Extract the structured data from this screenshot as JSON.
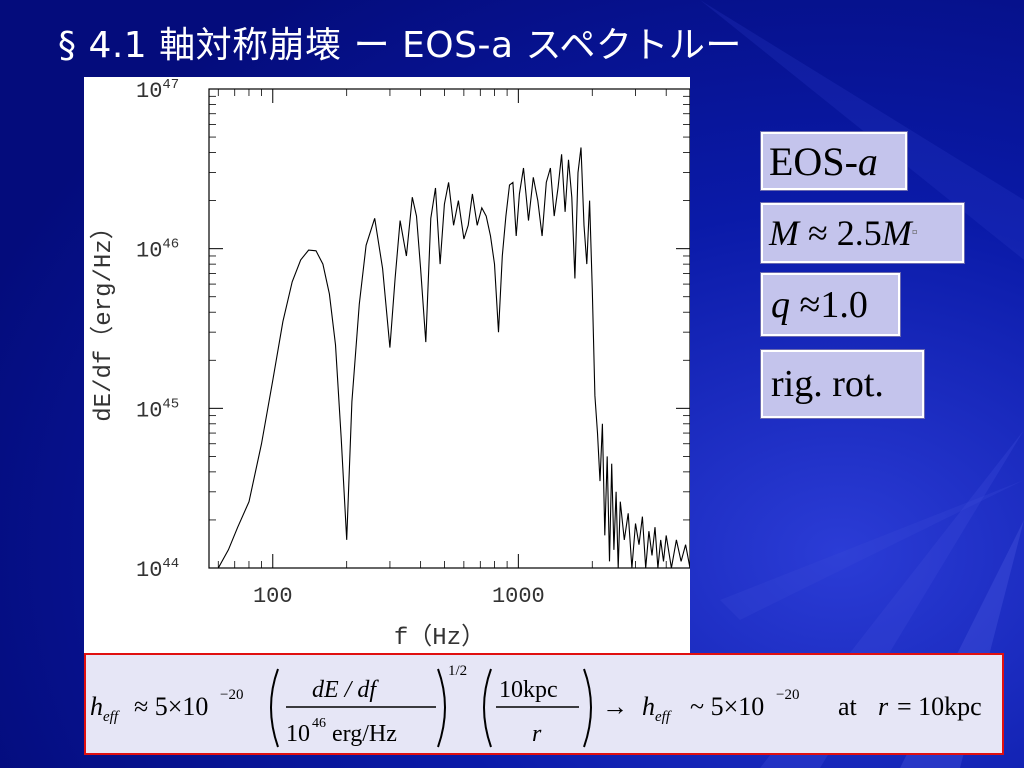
{
  "slide": {
    "title": "§ 4.1 軸対称崩壊 ー EOS-a スペクトルー",
    "colors": {
      "background": "#06109a",
      "label_box": "#c4c4ec",
      "formula_border": "#e01010"
    }
  },
  "labels": {
    "eos_prefix": "EOS-",
    "eos_italic": "a",
    "mass_m": "M",
    "mass_value": "≈ 2.5",
    "mass_msun": "M",
    "mass_sun_glyph": "▫",
    "q_symbol": "q",
    "q_value": "≈1.0",
    "rotation": "rig. rot."
  },
  "formula": {
    "h": "h",
    "eff": "eff",
    "approx": "≈ 5×10",
    "exp1": "−20",
    "num1": "dE / df",
    "den1_base": "10",
    "den1_exp": "46",
    "den1_unit": "erg/Hz",
    "power": "1/2",
    "num2": "10kpc",
    "den2": "r",
    "arrow": "→",
    "sim": "~ 5×10",
    "exp2": "−20",
    "at": "at",
    "r": "r",
    "equals": "= 10kpc"
  },
  "chart_data": {
    "type": "line",
    "xlabel": "f（Hz）",
    "ylabel": "dE/df（erg/Hz）",
    "xscale": "log",
    "yscale": "log",
    "xlim": [
      55,
      5000
    ],
    "ylim": [
      1e+44,
      1e+47
    ],
    "x_ticks": [
      {
        "value": 100,
        "label": "100"
      },
      {
        "value": 1000,
        "label": "1000"
      }
    ],
    "y_ticks": [
      {
        "value": 1e+44,
        "base": "10",
        "exp": "44"
      },
      {
        "value": 1e+45,
        "base": "10",
        "exp": "45"
      },
      {
        "value": 1e+46,
        "base": "10",
        "exp": "46"
      },
      {
        "value": 1e+47,
        "base": "10",
        "exp": "47"
      }
    ],
    "grid": false,
    "series": [
      {
        "x": [
          60,
          66,
          72,
          80,
          90,
          100,
          110,
          120,
          130,
          140,
          150,
          160,
          170,
          180,
          190,
          200,
          210,
          225,
          240,
          260,
          280,
          300,
          315,
          330,
          350,
          370,
          385,
          400,
          420,
          440,
          460,
          480,
          500,
          520,
          545,
          570,
          600,
          625,
          650,
          680,
          710,
          740,
          770,
          800,
          830,
          860,
          890,
          920,
          950,
          980,
          1010,
          1050,
          1100,
          1150,
          1200,
          1250,
          1300,
          1350,
          1400,
          1450,
          1500,
          1550,
          1600,
          1650,
          1700,
          1750,
          1800,
          1850,
          1900,
          1950,
          2000,
          2050,
          2100,
          2150,
          2200,
          2250,
          2300,
          2350,
          2400,
          2450,
          2500,
          2550,
          2600,
          2700,
          2800,
          2900,
          3000,
          3100,
          3200,
          3300,
          3400,
          3500,
          3600,
          3700,
          3800,
          3900,
          4000,
          4200,
          4400,
          4600,
          4800,
          5000
        ],
        "y": [
          1e+44,
          1.3e+44,
          1.8e+44,
          2.6e+44,
          6e+44,
          1.5e+45,
          3.5e+45,
          6.2e+45,
          8.5e+45,
          9.8e+45,
          9.7e+45,
          8e+45,
          5.2e+45,
          2.5e+45,
          6.5e+44,
          1.5e+44,
          1.1e+45,
          4.5e+45,
          1.05e+46,
          1.55e+46,
          7.5e+45,
          2.4e+45,
          6.5e+45,
          1.5e+46,
          9e+45,
          2.1e+46,
          1.6e+46,
          7.5e+45,
          2.6e+45,
          1.55e+46,
          2.4e+46,
          8e+45,
          1.9e+46,
          2.6e+46,
          1.4e+46,
          2e+46,
          1.15e+46,
          1.4e+46,
          2.2e+46,
          1.4e+46,
          1.8e+46,
          1.6e+46,
          1.2e+46,
          8e+45,
          3e+45,
          9e+45,
          1.6e+46,
          2.5e+46,
          2.6e+46,
          1.2e+46,
          2.2e+46,
          3.2e+46,
          1.5e+46,
          2.8e+46,
          2e+46,
          1.2e+46,
          2.6e+46,
          3.2e+46,
          1.6e+46,
          2.4e+46,
          3.9e+46,
          1.7e+46,
          3.6e+46,
          2.1e+46,
          6.5e+45,
          3e+46,
          4.3e+46,
          1.4e+46,
          8e+45,
          2e+46,
          5.5e+45,
          1.2e+45,
          7e+44,
          3.5e+44,
          8e+44,
          1.6e+44,
          5e+44,
          1.1e+44,
          4.5e+44,
          1.3e+44,
          3e+44,
          1e+44,
          2.6e+44,
          1.5e+44,
          2.2e+44,
          1e+44,
          1.9e+44,
          1.4e+44,
          2.1e+44,
          1e+44,
          1.7e+44,
          1.2e+44,
          1.8e+44,
          1e+44,
          1.5e+44,
          1.1e+44,
          1.6e+44,
          1e+44,
          1.5e+44,
          1.1e+44,
          1.4e+44,
          1e+44
        ]
      }
    ]
  }
}
